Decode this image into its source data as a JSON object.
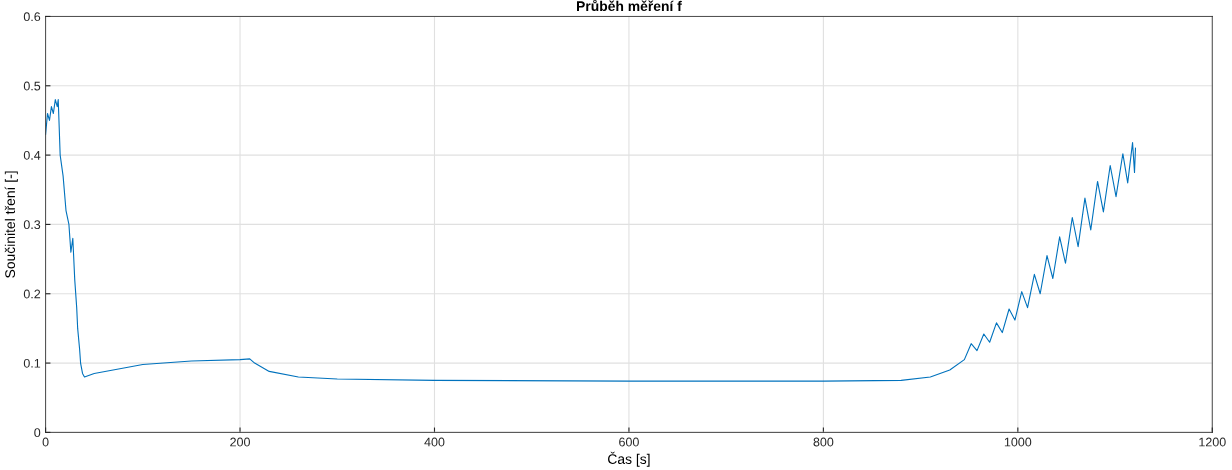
{
  "chart_data": {
    "type": "line",
    "title": "Průběh měření f",
    "xlabel": "Čas [s]",
    "ylabel": "Součinitel tření [-]",
    "xlim": [
      0,
      1200
    ],
    "xticks": [
      0,
      200,
      400,
      600,
      800,
      1000,
      1200
    ],
    "ylim": [
      0,
      0.6
    ],
    "yticks": [
      0,
      0.1,
      0.2,
      0.3,
      0.4,
      0.5,
      0.6
    ],
    "grid": true,
    "series": [
      {
        "color": "#0072bd",
        "x": [
          0,
          2,
          4,
          6,
          8,
          10,
          12,
          13,
          15,
          18,
          21,
          24,
          26,
          28,
          30,
          32,
          33,
          35,
          36,
          38,
          40,
          50,
          100,
          150,
          200,
          210,
          215,
          230,
          260,
          300,
          400,
          600,
          800,
          880,
          910,
          930,
          945,
          952,
          958,
          965,
          971,
          978,
          984,
          991,
          997,
          1004,
          1010,
          1017,
          1023,
          1030,
          1036,
          1043,
          1049,
          1056,
          1062,
          1069,
          1075,
          1082,
          1088,
          1095,
          1101,
          1108,
          1113,
          1118,
          1120,
          1121
        ],
        "values": [
          0.43,
          0.46,
          0.45,
          0.47,
          0.46,
          0.48,
          0.47,
          0.48,
          0.4,
          0.37,
          0.32,
          0.3,
          0.26,
          0.28,
          0.22,
          0.18,
          0.15,
          0.12,
          0.1,
          0.085,
          0.08,
          0.085,
          0.098,
          0.103,
          0.105,
          0.106,
          0.1,
          0.088,
          0.08,
          0.077,
          0.075,
          0.074,
          0.074,
          0.075,
          0.08,
          0.09,
          0.105,
          0.128,
          0.118,
          0.142,
          0.13,
          0.158,
          0.144,
          0.178,
          0.162,
          0.203,
          0.18,
          0.228,
          0.2,
          0.255,
          0.222,
          0.282,
          0.244,
          0.31,
          0.268,
          0.338,
          0.292,
          0.362,
          0.318,
          0.385,
          0.34,
          0.402,
          0.36,
          0.418,
          0.375,
          0.41
        ]
      }
    ]
  }
}
